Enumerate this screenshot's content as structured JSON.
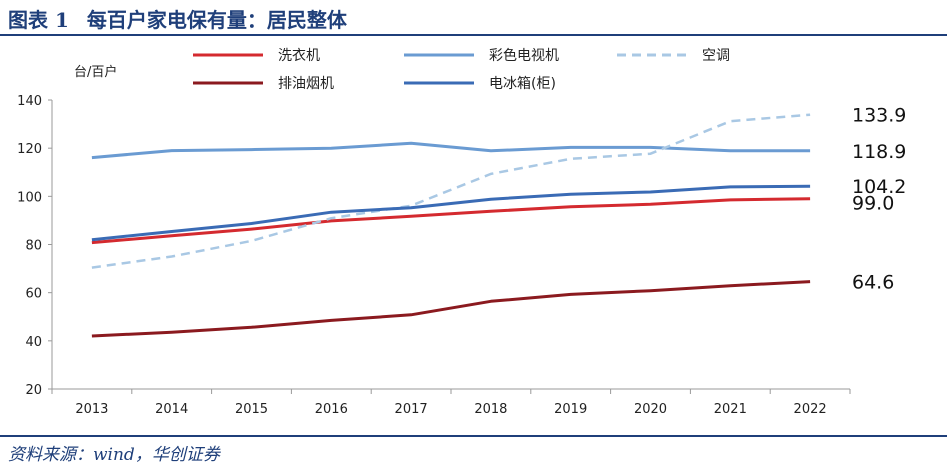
{
  "header": {
    "figure_no": "图表 1",
    "title": "每百户家电保有量：居民整体"
  },
  "source": "资料来源：wind，华创证券",
  "chart_data": {
    "type": "line",
    "ylabel": "台/百户",
    "ylim": [
      20,
      140
    ],
    "yticks": [
      20,
      40,
      60,
      80,
      100,
      120,
      140
    ],
    "x": [
      "2013",
      "2014",
      "2015",
      "2016",
      "2017",
      "2018",
      "2019",
      "2020",
      "2021",
      "2022"
    ],
    "grid": false,
    "legend_position": "top",
    "series": [
      {
        "name": "洗衣机",
        "color": "#d42a2f",
        "dash": false,
        "values": [
          80.8,
          83.6,
          86.4,
          89.8,
          91.7,
          93.8,
          95.7,
          96.7,
          98.5,
          99.0
        ],
        "end_label": "99.0"
      },
      {
        "name": "彩色电视机",
        "color": "#6a9bd2",
        "dash": false,
        "values": [
          116.1,
          119.0,
          119.4,
          120.0,
          122.0,
          118.9,
          120.3,
          120.3,
          118.9,
          118.9
        ],
        "end_label": "118.9"
      },
      {
        "name": "空调",
        "color": "#a9c8e4",
        "dash": true,
        "values": [
          70.4,
          75.0,
          81.5,
          90.9,
          96.1,
          109.3,
          115.6,
          117.7,
          131.2,
          133.9
        ],
        "end_label": "133.9"
      },
      {
        "name": "排油烟机",
        "color": "#8b1a1f",
        "dash": false,
        "values": [
          42.0,
          43.6,
          45.6,
          48.5,
          50.8,
          56.4,
          59.3,
          60.8,
          62.9,
          64.6
        ],
        "end_label": "64.6"
      },
      {
        "name": "电冰箱(柜)",
        "color": "#3a6bb5",
        "dash": false,
        "values": [
          82.0,
          85.4,
          88.7,
          93.4,
          95.3,
          98.8,
          100.9,
          101.8,
          103.9,
          104.2
        ],
        "end_label": "104.2"
      }
    ]
  }
}
